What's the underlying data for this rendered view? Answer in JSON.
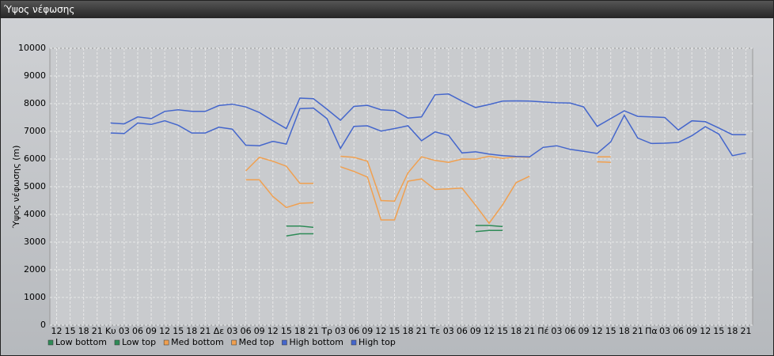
{
  "window_title": "Ύψος νέφωσης",
  "chart_data": {
    "type": "line",
    "y_label": "Ύψος νέφωσης (m)",
    "categories": [
      "12",
      "15",
      "18",
      "21",
      "Κυ",
      "03",
      "06",
      "09",
      "12",
      "15",
      "18",
      "21",
      "Δε",
      "03",
      "06",
      "09",
      "12",
      "15",
      "18",
      "21",
      "Τρ",
      "03",
      "06",
      "09",
      "12",
      "15",
      "18",
      "21",
      "Τε",
      "03",
      "06",
      "09",
      "12",
      "15",
      "18",
      "21",
      "Πέ",
      "03",
      "06",
      "09",
      "12",
      "15",
      "18",
      "21",
      "Πα",
      "03",
      "06",
      "09",
      "12",
      "15",
      "18",
      "21"
    ],
    "ylim": [
      0,
      10000
    ],
    "yticks": [
      0,
      1000,
      2000,
      3000,
      4000,
      5000,
      6000,
      7000,
      8000,
      9000,
      10000
    ],
    "grid": true,
    "legend": "bottom-left",
    "series": [
      {
        "name": "Low bottom",
        "color": "#2e8b57",
        "values": [
          null,
          null,
          null,
          null,
          null,
          null,
          null,
          null,
          null,
          null,
          null,
          null,
          null,
          null,
          null,
          null,
          null,
          3220,
          3300,
          3300,
          null,
          null,
          null,
          null,
          null,
          null,
          null,
          null,
          null,
          null,
          null,
          3380,
          3420,
          3420,
          null,
          null,
          null,
          null,
          null,
          null,
          null,
          null,
          null,
          null,
          null,
          null,
          null,
          null,
          null,
          null,
          null,
          null
        ]
      },
      {
        "name": "Low top",
        "color": "#2e8b57",
        "values": [
          null,
          null,
          null,
          null,
          null,
          null,
          null,
          null,
          null,
          null,
          null,
          null,
          null,
          null,
          null,
          null,
          null,
          3580,
          3580,
          3530,
          null,
          null,
          null,
          null,
          null,
          null,
          null,
          null,
          null,
          null,
          null,
          3600,
          3600,
          3560,
          null,
          null,
          null,
          null,
          null,
          null,
          null,
          null,
          null,
          null,
          null,
          null,
          null,
          null,
          null,
          null,
          null,
          null
        ]
      },
      {
        "name": "Med bottom",
        "color": "#f0a050",
        "values": [
          null,
          null,
          null,
          null,
          null,
          null,
          null,
          null,
          null,
          null,
          null,
          null,
          null,
          null,
          5250,
          5250,
          4650,
          4250,
          4400,
          4420,
          null,
          5720,
          5550,
          5350,
          3800,
          3800,
          5200,
          5280,
          4900,
          4920,
          4950,
          4330,
          3680,
          4350,
          5150,
          5380,
          null,
          null,
          null,
          null,
          5900,
          5880,
          null,
          null,
          null,
          null,
          null,
          null,
          null,
          null,
          null,
          null
        ]
      },
      {
        "name": "Med top",
        "color": "#f0a050",
        "values": [
          null,
          null,
          null,
          null,
          null,
          null,
          null,
          null,
          null,
          null,
          null,
          null,
          null,
          null,
          5570,
          6060,
          5920,
          5740,
          5120,
          5120,
          null,
          6100,
          6060,
          5920,
          4500,
          4480,
          5500,
          6080,
          5950,
          5880,
          6000,
          5990,
          6100,
          6020,
          6080,
          6060,
          null,
          null,
          null,
          null,
          6080,
          6080,
          null,
          null,
          null,
          null,
          null,
          null,
          null,
          null,
          null,
          null
        ]
      },
      {
        "name": "High bottom",
        "color": "#4466cc",
        "values": [
          null,
          null,
          null,
          null,
          6940,
          6920,
          7300,
          7250,
          7380,
          7220,
          6940,
          6940,
          7150,
          7080,
          6500,
          6480,
          6640,
          6540,
          7820,
          7840,
          7460,
          6380,
          7180,
          7200,
          7010,
          7100,
          7200,
          6660,
          6980,
          6850,
          6220,
          6260,
          6180,
          6120,
          6090,
          6080,
          6420,
          6480,
          6350,
          6280,
          6200,
          6620,
          7580,
          6760,
          6560,
          6570,
          6600,
          6840,
          7170,
          6900,
          6120,
          6220
        ]
      },
      {
        "name": "High top",
        "color": "#4466cc",
        "values": [
          null,
          null,
          null,
          null,
          7300,
          7270,
          7520,
          7460,
          7720,
          7780,
          7720,
          7720,
          7930,
          7980,
          7880,
          7680,
          7380,
          7100,
          8200,
          8180,
          7800,
          7400,
          7900,
          7940,
          7780,
          7750,
          7480,
          7520,
          8320,
          8350,
          8090,
          7860,
          7970,
          8090,
          8100,
          8090,
          8060,
          8030,
          8020,
          7880,
          7180,
          7460,
          7740,
          7540,
          7520,
          7500,
          7050,
          7380,
          7350,
          7120,
          6880,
          6880
        ]
      }
    ]
  }
}
